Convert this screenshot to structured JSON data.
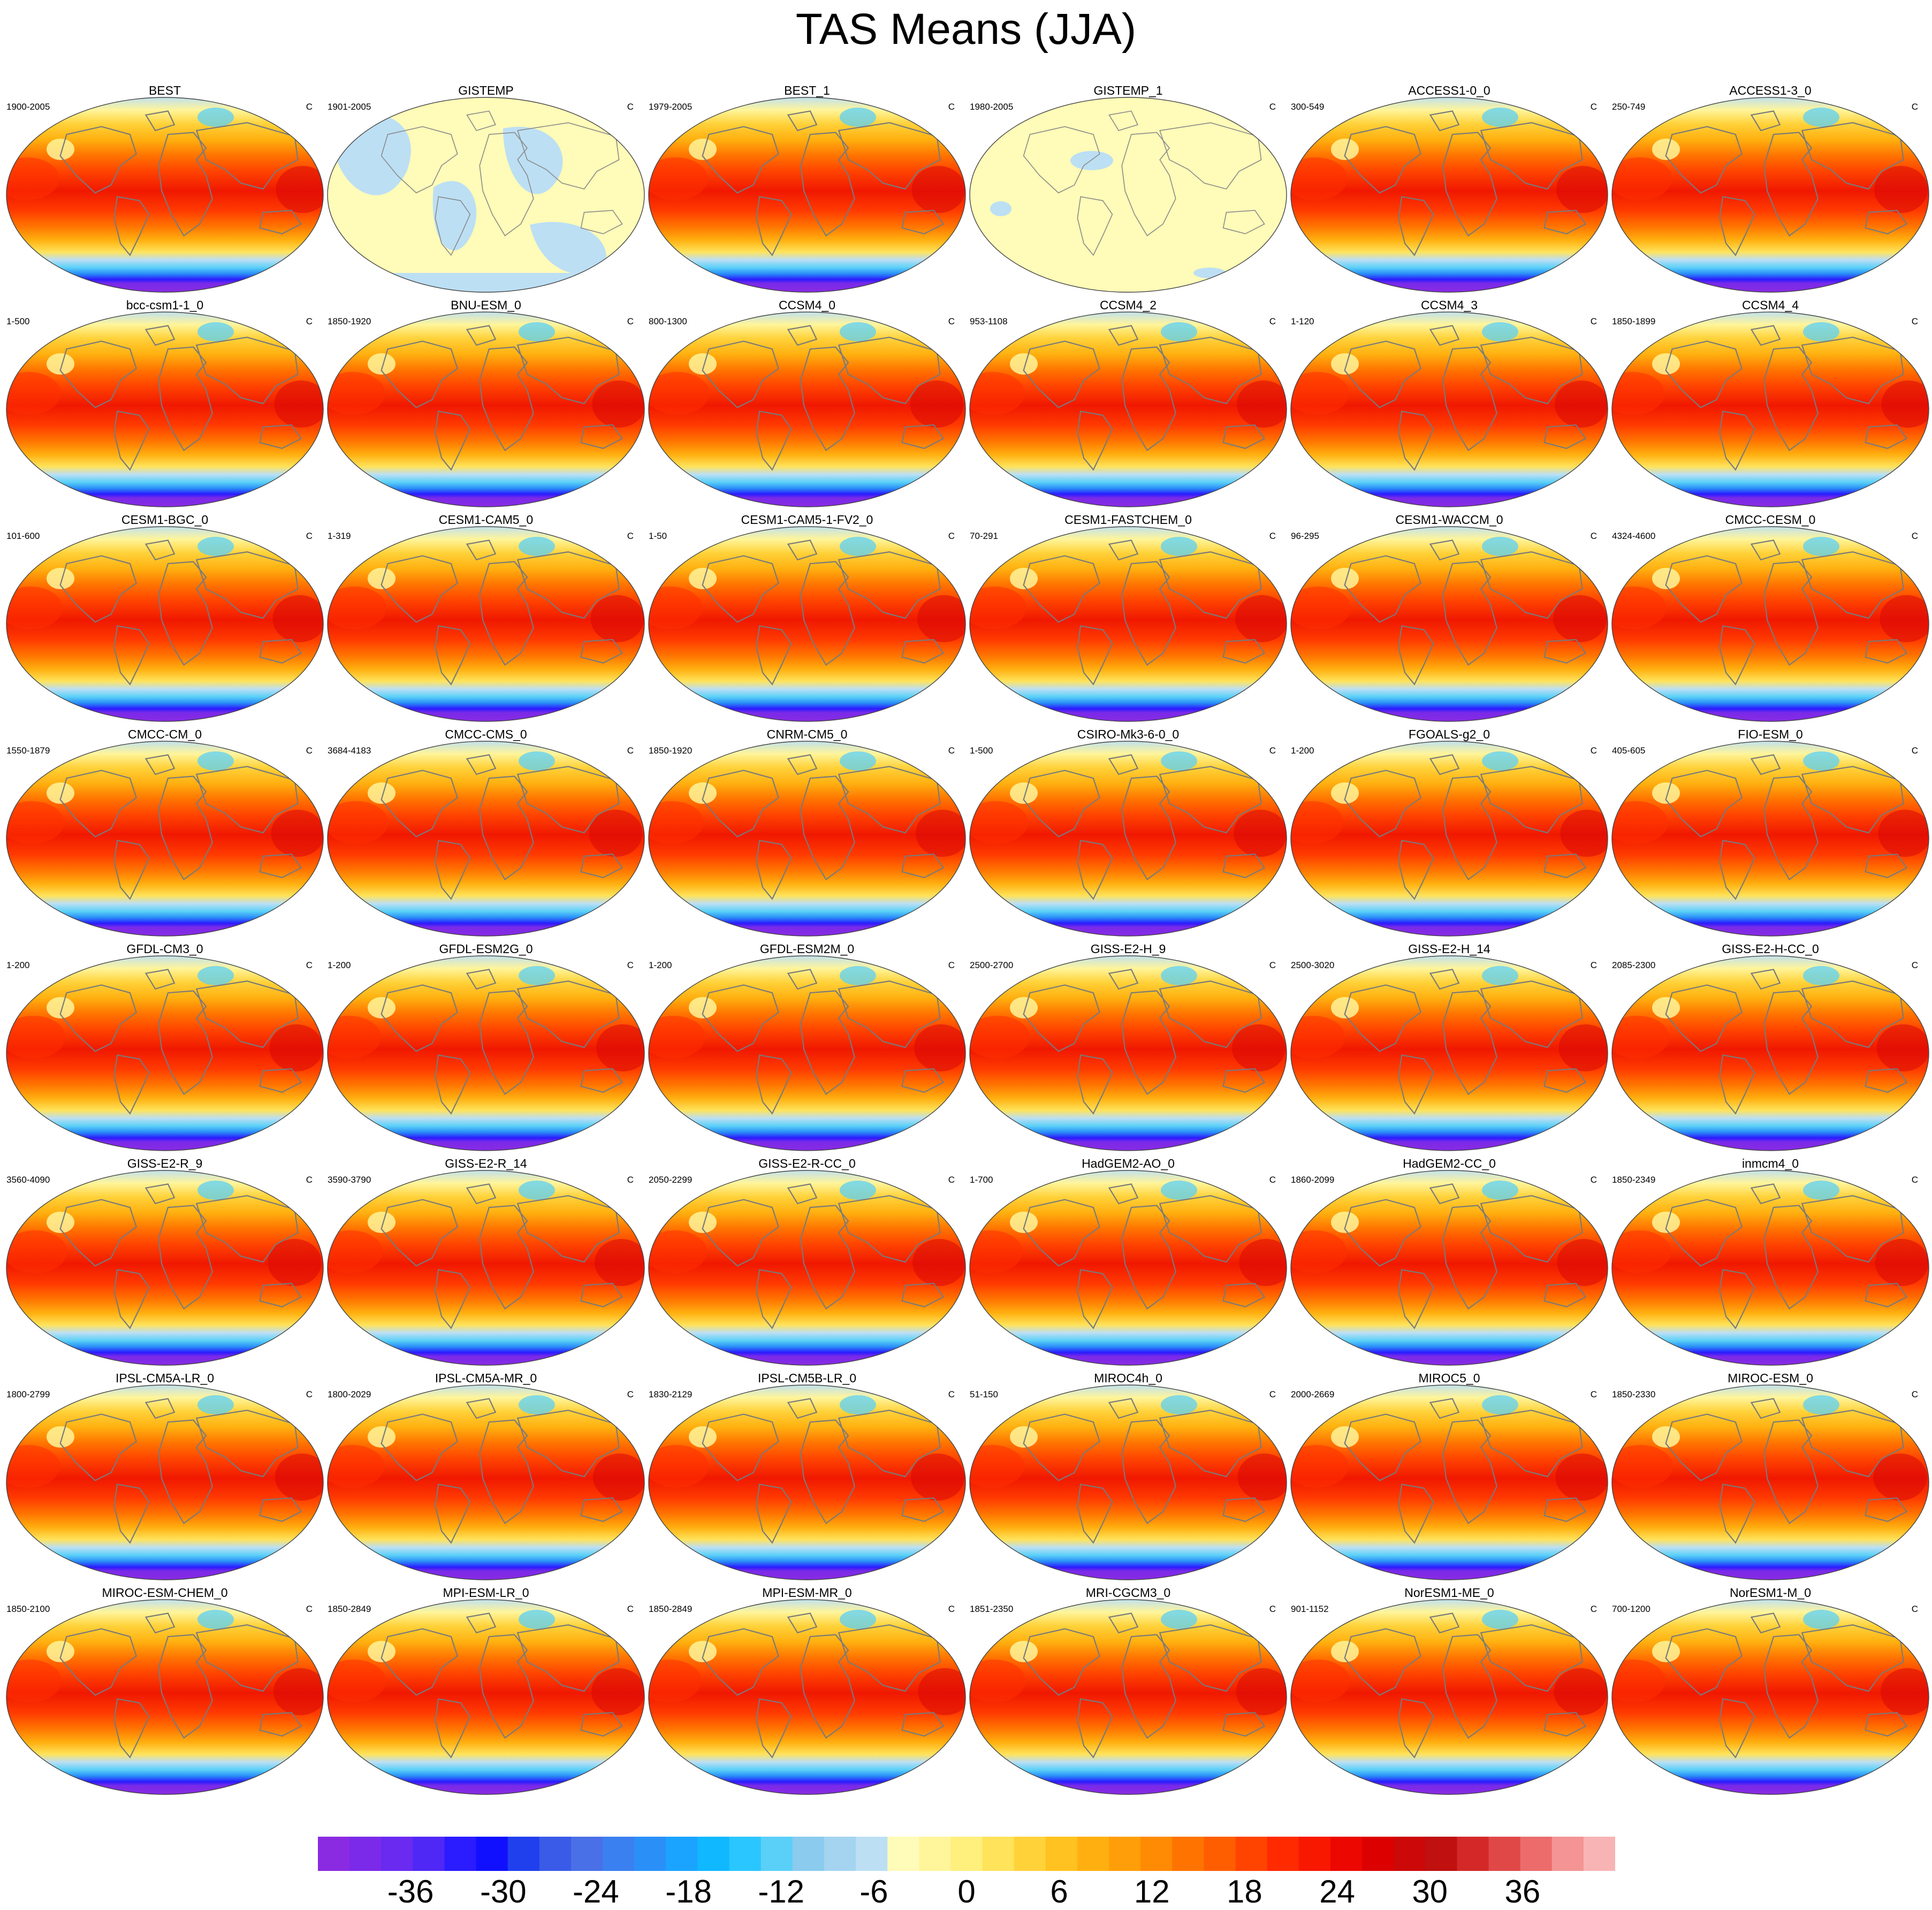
{
  "chart_data": {
    "type": "heatmap",
    "title": "TAS Means (JJA)",
    "projection": "Robinson (global)",
    "unit": "C",
    "panels": [
      {
        "name": "BEST",
        "period": "1900-2005",
        "unit": "C",
        "style": "model"
      },
      {
        "name": "GISTEMP",
        "period": "1901-2005",
        "unit": "C",
        "style": "anomaly"
      },
      {
        "name": "BEST_1",
        "period": "1979-2005",
        "unit": "C",
        "style": "model"
      },
      {
        "name": "GISTEMP_1",
        "period": "1980-2005",
        "unit": "C",
        "style": "anomaly-flat"
      },
      {
        "name": "ACCESS1-0_0",
        "period": "300-549",
        "unit": "C",
        "style": "model"
      },
      {
        "name": "ACCESS1-3_0",
        "period": "250-749",
        "unit": "C",
        "style": "model"
      },
      {
        "name": "bcc-csm1-1_0",
        "period": "1-500",
        "unit": "C",
        "style": "model"
      },
      {
        "name": "BNU-ESM_0",
        "period": "1850-1920",
        "unit": "C",
        "style": "model"
      },
      {
        "name": "CCSM4_0",
        "period": "800-1300",
        "unit": "C",
        "style": "model"
      },
      {
        "name": "CCSM4_2",
        "period": "953-1108",
        "unit": "C",
        "style": "model"
      },
      {
        "name": "CCSM4_3",
        "period": "1-120",
        "unit": "C",
        "style": "model"
      },
      {
        "name": "CCSM4_4",
        "period": "1850-1899",
        "unit": "C",
        "style": "model"
      },
      {
        "name": "CESM1-BGC_0",
        "period": "101-600",
        "unit": "C",
        "style": "model"
      },
      {
        "name": "CESM1-CAM5_0",
        "period": "1-319",
        "unit": "C",
        "style": "model"
      },
      {
        "name": "CESM1-CAM5-1-FV2_0",
        "period": "1-50",
        "unit": "C",
        "style": "model"
      },
      {
        "name": "CESM1-FASTCHEM_0",
        "period": "70-291",
        "unit": "C",
        "style": "model"
      },
      {
        "name": "CESM1-WACCM_0",
        "period": "96-295",
        "unit": "C",
        "style": "model"
      },
      {
        "name": "CMCC-CESM_0",
        "period": "4324-4600",
        "unit": "C",
        "style": "model"
      },
      {
        "name": "CMCC-CM_0",
        "period": "1550-1879",
        "unit": "C",
        "style": "model"
      },
      {
        "name": "CMCC-CMS_0",
        "period": "3684-4183",
        "unit": "C",
        "style": "model"
      },
      {
        "name": "CNRM-CM5_0",
        "period": "1850-1920",
        "unit": "C",
        "style": "model"
      },
      {
        "name": "CSIRO-Mk3-6-0_0",
        "period": "1-500",
        "unit": "C",
        "style": "model"
      },
      {
        "name": "FGOALS-g2_0",
        "period": "1-200",
        "unit": "C",
        "style": "model"
      },
      {
        "name": "FIO-ESM_0",
        "period": "405-605",
        "unit": "C",
        "style": "model"
      },
      {
        "name": "GFDL-CM3_0",
        "period": "1-200",
        "unit": "C",
        "style": "model"
      },
      {
        "name": "GFDL-ESM2G_0",
        "period": "1-200",
        "unit": "C",
        "style": "model"
      },
      {
        "name": "GFDL-ESM2M_0",
        "period": "1-200",
        "unit": "C",
        "style": "model"
      },
      {
        "name": "GISS-E2-H_9",
        "period": "2500-2700",
        "unit": "C",
        "style": "model"
      },
      {
        "name": "GISS-E2-H_14",
        "period": "2500-3020",
        "unit": "C",
        "style": "model"
      },
      {
        "name": "GISS-E2-H-CC_0",
        "period": "2085-2300",
        "unit": "C",
        "style": "model"
      },
      {
        "name": "GISS-E2-R_9",
        "period": "3560-4090",
        "unit": "C",
        "style": "model"
      },
      {
        "name": "GISS-E2-R_14",
        "period": "3590-3790",
        "unit": "C",
        "style": "model"
      },
      {
        "name": "GISS-E2-R-CC_0",
        "period": "2050-2299",
        "unit": "C",
        "style": "model"
      },
      {
        "name": "HadGEM2-AO_0",
        "period": "1-700",
        "unit": "C",
        "style": "model"
      },
      {
        "name": "HadGEM2-CC_0",
        "period": "1860-2099",
        "unit": "C",
        "style": "model"
      },
      {
        "name": "inmcm4_0",
        "period": "1850-2349",
        "unit": "C",
        "style": "model"
      },
      {
        "name": "IPSL-CM5A-LR_0",
        "period": "1800-2799",
        "unit": "C",
        "style": "model"
      },
      {
        "name": "IPSL-CM5A-MR_0",
        "period": "1800-2029",
        "unit": "C",
        "style": "model"
      },
      {
        "name": "IPSL-CM5B-LR_0",
        "period": "1830-2129",
        "unit": "C",
        "style": "model"
      },
      {
        "name": "MIROC4h_0",
        "period": "51-150",
        "unit": "C",
        "style": "model"
      },
      {
        "name": "MIROC5_0",
        "period": "2000-2669",
        "unit": "C",
        "style": "model"
      },
      {
        "name": "MIROC-ESM_0",
        "period": "1850-2330",
        "unit": "C",
        "style": "model"
      },
      {
        "name": "MIROC-ESM-CHEM_0",
        "period": "1850-2100",
        "unit": "C",
        "style": "model"
      },
      {
        "name": "MPI-ESM-LR_0",
        "period": "1850-2849",
        "unit": "C",
        "style": "model"
      },
      {
        "name": "MPI-ESM-MR_0",
        "period": "1850-2849",
        "unit": "C",
        "style": "model"
      },
      {
        "name": "MRI-CGCM3_0",
        "period": "1851-2350",
        "unit": "C",
        "style": "model"
      },
      {
        "name": "NorESM1-ME_0",
        "period": "901-1152",
        "unit": "C",
        "style": "model"
      },
      {
        "name": "NorESM1-M_0",
        "period": "700-1200",
        "unit": "C",
        "style": "model"
      }
    ],
    "colorbar": {
      "min": -42,
      "max": 42,
      "step": 2,
      "tick_labels": [
        "-36",
        "-30",
        "-24",
        "-18",
        "-12",
        "-6",
        "0",
        "6",
        "12",
        "18",
        "24",
        "30",
        "36"
      ],
      "tick_values": [
        -36,
        -30,
        -24,
        -18,
        -12,
        -6,
        0,
        6,
        12,
        18,
        24,
        30,
        36
      ],
      "colors": [
        "#8a2be2",
        "#7a2ae8",
        "#6a2af0",
        "#5028f5",
        "#2a1cff",
        "#1010ff",
        "#2040ee",
        "#3a5ae8",
        "#4a70e8",
        "#3a80f0",
        "#2a90f8",
        "#1aa4ff",
        "#10b8ff",
        "#2ac6ff",
        "#5ad0f8",
        "#8acbee",
        "#a4d4f0",
        "#bcdff4",
        "#fffbb8",
        "#fff59a",
        "#ffef7c",
        "#ffe35a",
        "#ffd23a",
        "#ffc220",
        "#ffb010",
        "#ff9e08",
        "#ff8a04",
        "#ff7400",
        "#ff5e00",
        "#ff4400",
        "#ff2a00",
        "#f81800",
        "#ec0800",
        "#dc0000",
        "#cc0808",
        "#c01010",
        "#d42828",
        "#e04848",
        "#ec6c6c",
        "#f49494",
        "#f8b4b4"
      ]
    }
  }
}
